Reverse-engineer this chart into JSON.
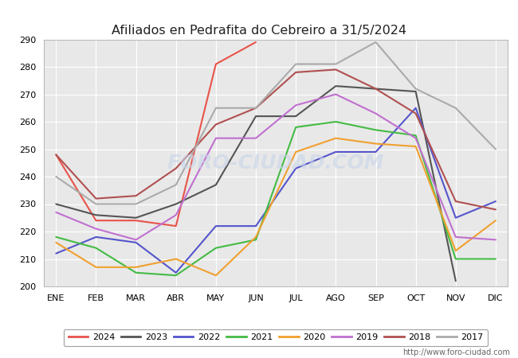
{
  "title": "Afiliados en Pedrafita do Cebreiro a 31/5/2024",
  "background_color": "#ffffff",
  "plot_bg_color": "#e8e8e8",
  "header_bar_color": "#4a86c8",
  "months": [
    "ENE",
    "FEB",
    "MAR",
    "ABR",
    "MAY",
    "JUN",
    "JUL",
    "AGO",
    "SEP",
    "OCT",
    "NOV",
    "DIC"
  ],
  "ylim": [
    200,
    290
  ],
  "yticks": [
    200,
    210,
    220,
    230,
    240,
    250,
    260,
    270,
    280,
    290
  ],
  "series": [
    {
      "year": "2024",
      "color": "#e8534a",
      "data": [
        248,
        224,
        224,
        222,
        281,
        289,
        null,
        null,
        null,
        null,
        null,
        null
      ]
    },
    {
      "year": "2023",
      "color": "#555555",
      "data": [
        230,
        226,
        225,
        230,
        237,
        262,
        262,
        273,
        272,
        271,
        202,
        null
      ]
    },
    {
      "year": "2022",
      "color": "#5555cc",
      "data": [
        212,
        218,
        216,
        205,
        222,
        222,
        243,
        249,
        249,
        265,
        225,
        231
      ]
    },
    {
      "year": "2021",
      "color": "#44bb44",
      "data": [
        218,
        214,
        205,
        204,
        214,
        217,
        258,
        260,
        257,
        255,
        210,
        210
      ]
    },
    {
      "year": "2020",
      "color": "#f0a030",
      "data": [
        216,
        207,
        207,
        210,
        204,
        218,
        249,
        254,
        252,
        251,
        213,
        224
      ]
    },
    {
      "year": "2019",
      "color": "#c070d0",
      "data": [
        227,
        221,
        217,
        226,
        254,
        254,
        266,
        270,
        263,
        254,
        218,
        217
      ]
    },
    {
      "year": "2018",
      "color": "#b05050",
      "data": [
        248,
        232,
        233,
        243,
        259,
        265,
        278,
        279,
        272,
        263,
        231,
        228
      ]
    },
    {
      "year": "2017",
      "color": "#aaaaaa",
      "data": [
        240,
        230,
        230,
        237,
        265,
        265,
        281,
        281,
        289,
        272,
        265,
        250
      ]
    }
  ],
  "watermark": "FORO-CIUDAD.COM",
  "url": "http://www.foro-ciudad.com",
  "legend_bg": "#ffffff",
  "legend_border": "#888888"
}
